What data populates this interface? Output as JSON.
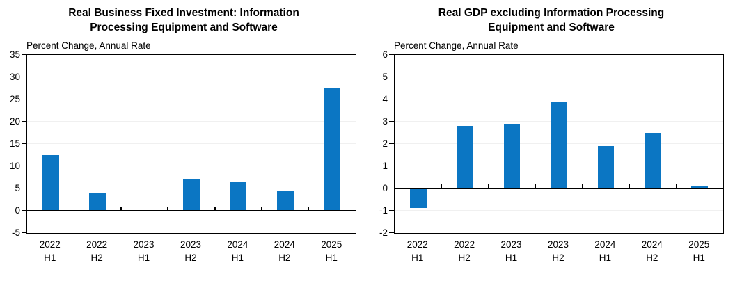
{
  "styles": {
    "background": "#ffffff",
    "axis_color": "#000000",
    "gridline_color": "#f0f0f0"
  },
  "chart_data": [
    {
      "type": "bar",
      "title": "Real Business Fixed Investment: Information Processing Equipment and Software",
      "ylabel": "Percent Change, Annual Rate",
      "xlabel": "",
      "categories": [
        "2022 H1",
        "2022 H2",
        "2023 H1",
        "2023 H2",
        "2024 H1",
        "2024 H2",
        "2025 H1"
      ],
      "values": [
        12.4,
        3.9,
        -0.1,
        7.0,
        6.4,
        4.5,
        27.5
      ],
      "ylim": [
        -5,
        35
      ],
      "ytick_step": 5,
      "bar_color": "#0b76c3",
      "grid": true,
      "legend": false
    },
    {
      "type": "bar",
      "title": "Real GDP excluding Information Processing Equipment and Software",
      "ylabel": "Percent Change, Annual Rate",
      "xlabel": "",
      "categories": [
        "2022 H1",
        "2022 H2",
        "2023 H1",
        "2023 H2",
        "2024 H1",
        "2024 H2",
        "2025 H1"
      ],
      "values": [
        -0.9,
        2.8,
        2.9,
        3.9,
        1.9,
        2.5,
        0.1
      ],
      "ylim": [
        -2,
        6
      ],
      "ytick_step": 1,
      "bar_color": "#0b76c3",
      "grid": true,
      "legend": false
    }
  ]
}
